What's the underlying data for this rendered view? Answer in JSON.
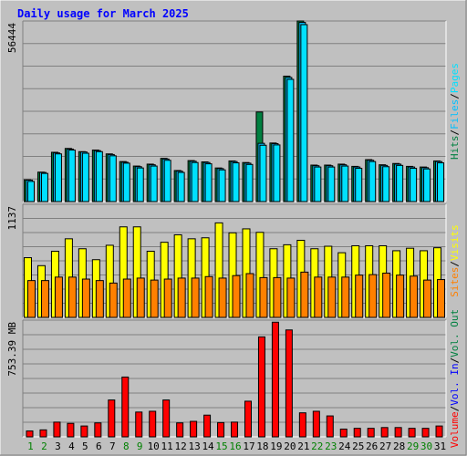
{
  "chart_data": {
    "type": "bar",
    "title": "Daily usage for March 2025",
    "categories": [
      "1",
      "2",
      "3",
      "4",
      "5",
      "6",
      "7",
      "8",
      "9",
      "10",
      "11",
      "12",
      "13",
      "14",
      "15",
      "16",
      "17",
      "18",
      "19",
      "20",
      "21",
      "22",
      "23",
      "24",
      "25",
      "26",
      "27",
      "28",
      "29",
      "30",
      "31"
    ],
    "weekend_days": [
      "1",
      "2",
      "8",
      "9",
      "15",
      "16",
      "22",
      "23",
      "29",
      "30"
    ],
    "colors": {
      "title": "#0000ff",
      "hits": "#008040",
      "files": "#00c0ff",
      "pages": "#00e0ff",
      "visits": "#ffff00",
      "sites": "#ff8000",
      "kbytes": "#ff0000",
      "weekend_label": "#008000",
      "weekday_label": "#000000"
    },
    "panels": [
      {
        "id": "hits-files-pages",
        "max_label": "56444",
        "ylim": [
          0,
          56444
        ],
        "series": [
          {
            "name": "Hits",
            "values": [
              6800,
              9200,
              15400,
              16600,
              15600,
              16100,
              14900,
              12500,
              11100,
              11700,
              13500,
              9700,
              12800,
              12400,
              10500,
              12700,
              12200,
              28000,
              18300,
              39200,
              56444,
              11400,
              11400,
              11700,
              11000,
              13100,
              11500,
              11900,
              11000,
              10800,
              12700
            ]
          },
          {
            "name": "Files",
            "values": [
              6700,
              9100,
              15200,
              16400,
              15500,
              15900,
              14700,
              12300,
              10900,
              11500,
              13300,
              9500,
              12600,
              12200,
              10300,
              12500,
              12000,
              18200,
              18100,
              38800,
              56000,
              11200,
              11200,
              11500,
              10800,
              12900,
              11300,
              11700,
              10800,
              10600,
              12500
            ]
          },
          {
            "name": "Pages",
            "values": [
              6300,
              8800,
              14900,
              16100,
              15100,
              15600,
              14300,
              12000,
              10500,
              11100,
              12900,
              9100,
              12200,
              11800,
              9900,
              12100,
              11600,
              17600,
              17700,
              38200,
              55300,
              10800,
              10800,
              11100,
              10400,
              12500,
              10900,
              11300,
              10400,
              10200,
              12100
            ]
          }
        ],
        "axis_label_parts": [
          {
            "text": "Hits",
            "color": "#008040"
          },
          {
            "text": "/",
            "color": "#000000"
          },
          {
            "text": "Files",
            "color": "#00c0ff"
          },
          {
            "text": "/",
            "color": "#000000"
          },
          {
            "text": "Pages",
            "color": "#00e0ff"
          }
        ]
      },
      {
        "id": "visits-sites",
        "max_label": "1137",
        "ylim": [
          0,
          1137
        ],
        "series": [
          {
            "name": "Visits",
            "values": [
              600,
              520,
              665,
              790,
              690,
              580,
              725,
              910,
              910,
              665,
              755,
              830,
              790,
              800,
              950,
              850,
              890,
              855,
              690,
              730,
              775,
              690,
              715,
              650,
              720,
              720,
              720,
              670,
              695,
              670,
              700
            ]
          },
          {
            "name": "Sites",
            "values": [
              370,
              370,
              405,
              405,
              385,
              370,
              345,
              385,
              395,
              375,
              385,
              395,
              395,
              410,
              395,
              420,
              440,
              400,
              400,
              395,
              455,
              405,
              405,
              405,
              425,
              430,
              445,
              425,
              415,
              375,
              380
            ]
          }
        ],
        "axis_label_parts": [
          {
            "text": "Sites",
            "color": "#ff8000"
          },
          {
            "text": "/",
            "color": "#000000"
          },
          {
            "text": "Visits",
            "color": "#ffff00"
          }
        ]
      },
      {
        "id": "volume",
        "max_label": "753.39 MB",
        "ylim": [
          0,
          753.39
        ],
        "series": [
          {
            "name": "Volume",
            "values": [
              38,
              45,
              95,
              87,
              70,
              90,
              238,
              386,
              160,
              165,
              238,
              90,
              100,
              140,
              92,
              95,
              230,
              645,
              740,
              690,
              155,
              165,
              135,
              50,
              55,
              55,
              60,
              60,
              55,
              55,
              70
            ]
          }
        ],
        "axis_label_parts": [
          {
            "text": "Volume",
            "color": "#ff0000"
          },
          {
            "text": "/",
            "color": "#000000"
          },
          {
            "text": "Vol. In",
            "color": "#0000ff"
          },
          {
            "text": "/",
            "color": "#000000"
          },
          {
            "text": "Vol. Out",
            "color": "#008040"
          }
        ]
      }
    ]
  }
}
